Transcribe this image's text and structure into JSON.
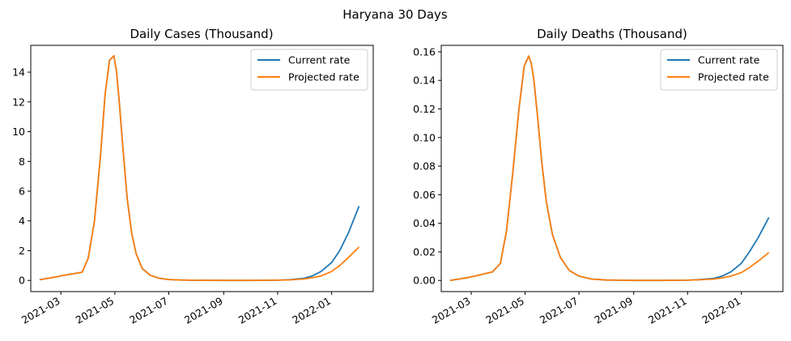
{
  "figure": {
    "title": "Haryana 30 Days"
  },
  "colors": {
    "current": "#1f77b4",
    "projected": "#ff7f0e"
  },
  "chart_data": [
    {
      "type": "line",
      "title": "Daily Cases (Thousand)",
      "xlabel": "",
      "ylabel": "",
      "x_tick_labels": [
        "2021-03",
        "2021-05",
        "2021-07",
        "2021-09",
        "2021-11",
        "2022-01"
      ],
      "x_tick_dates": [
        "2021-03-01",
        "2021-05-01",
        "2021-07-01",
        "2021-09-01",
        "2021-11-01",
        "2022-01-01"
      ],
      "xlim": [
        "2021-01-26",
        "2022-02-17"
      ],
      "ylim": [
        -0.75,
        15.8
      ],
      "y_ticks": [
        0,
        2,
        4,
        6,
        8,
        10,
        12,
        14
      ],
      "y_tick_labels": [
        "0",
        "2",
        "4",
        "6",
        "8",
        "10",
        "12",
        "14"
      ],
      "legend": {
        "position": "top-right",
        "entries": [
          "Current rate",
          "Projected rate"
        ]
      },
      "grid": false,
      "series": [
        {
          "name": "Current rate",
          "color_key": "current",
          "x": [
            "2021-02-05",
            "2021-02-15",
            "2021-02-25",
            "2021-03-05",
            "2021-03-15",
            "2021-03-25",
            "2021-04-01",
            "2021-04-08",
            "2021-04-15",
            "2021-04-20",
            "2021-04-25",
            "2021-04-30",
            "2021-05-03",
            "2021-05-06",
            "2021-05-10",
            "2021-05-15",
            "2021-05-20",
            "2021-05-25",
            "2021-06-01",
            "2021-06-10",
            "2021-06-20",
            "2021-07-01",
            "2021-07-15",
            "2021-08-01",
            "2021-09-01",
            "2021-10-01",
            "2021-11-01",
            "2021-11-15",
            "2021-12-01",
            "2021-12-10",
            "2021-12-20",
            "2022-01-01",
            "2022-01-10",
            "2022-01-20",
            "2022-02-01"
          ],
          "y": [
            0.05,
            0.15,
            0.25,
            0.35,
            0.45,
            0.55,
            1.5,
            4.0,
            8.5,
            12.5,
            14.8,
            15.1,
            14.0,
            12.0,
            9.0,
            5.5,
            3.2,
            1.8,
            0.8,
            0.35,
            0.15,
            0.06,
            0.03,
            0.01,
            0.0,
            0.0,
            0.02,
            0.05,
            0.15,
            0.3,
            0.6,
            1.2,
            2.0,
            3.2,
            5.0
          ]
        },
        {
          "name": "Projected rate",
          "color_key": "projected",
          "x": [
            "2021-02-05",
            "2021-02-15",
            "2021-02-25",
            "2021-03-05",
            "2021-03-15",
            "2021-03-25",
            "2021-04-01",
            "2021-04-08",
            "2021-04-15",
            "2021-04-20",
            "2021-04-25",
            "2021-04-30",
            "2021-05-03",
            "2021-05-06",
            "2021-05-10",
            "2021-05-15",
            "2021-05-20",
            "2021-05-25",
            "2021-06-01",
            "2021-06-10",
            "2021-06-20",
            "2021-07-01",
            "2021-07-15",
            "2021-08-01",
            "2021-09-01",
            "2021-10-01",
            "2021-11-01",
            "2021-11-15",
            "2021-12-01",
            "2021-12-10",
            "2021-12-20",
            "2022-01-01",
            "2022-01-10",
            "2022-01-20",
            "2022-02-01"
          ],
          "y": [
            0.05,
            0.15,
            0.25,
            0.35,
            0.45,
            0.55,
            1.5,
            4.0,
            8.5,
            12.5,
            14.8,
            15.1,
            14.0,
            12.0,
            9.0,
            5.5,
            3.2,
            1.8,
            0.8,
            0.35,
            0.15,
            0.06,
            0.03,
            0.01,
            0.0,
            0.0,
            0.02,
            0.04,
            0.1,
            0.18,
            0.3,
            0.6,
            1.0,
            1.55,
            2.25
          ]
        }
      ]
    },
    {
      "type": "line",
      "title": "Daily Deaths (Thousand)",
      "xlabel": "",
      "ylabel": "",
      "x_tick_labels": [
        "2021-03",
        "2021-05",
        "2021-07",
        "2021-09",
        "2021-11",
        "2022-01"
      ],
      "x_tick_dates": [
        "2021-03-01",
        "2021-05-01",
        "2021-07-01",
        "2021-09-01",
        "2021-11-01",
        "2022-01-01"
      ],
      "xlim": [
        "2021-01-26",
        "2022-02-17"
      ],
      "ylim": [
        -0.0078,
        0.1645
      ],
      "y_ticks": [
        0.0,
        0.02,
        0.04,
        0.06,
        0.08,
        0.1,
        0.12,
        0.14,
        0.16
      ],
      "y_tick_labels": [
        "0.00",
        "0.02",
        "0.04",
        "0.06",
        "0.08",
        "0.10",
        "0.12",
        "0.14",
        "0.16"
      ],
      "legend": {
        "position": "top-right",
        "entries": [
          "Current rate",
          "Projected rate"
        ]
      },
      "grid": false,
      "series": [
        {
          "name": "Current rate",
          "color_key": "current",
          "x": [
            "2021-02-05",
            "2021-02-15",
            "2021-02-25",
            "2021-03-05",
            "2021-03-15",
            "2021-03-25",
            "2021-04-03",
            "2021-04-10",
            "2021-04-17",
            "2021-04-24",
            "2021-04-30",
            "2021-05-05",
            "2021-05-08",
            "2021-05-11",
            "2021-05-15",
            "2021-05-20",
            "2021-05-25",
            "2021-06-01",
            "2021-06-10",
            "2021-06-20",
            "2021-07-01",
            "2021-07-15",
            "2021-08-01",
            "2021-09-01",
            "2021-10-01",
            "2021-11-01",
            "2021-11-15",
            "2021-12-01",
            "2021-12-10",
            "2021-12-20",
            "2022-01-01",
            "2022-01-10",
            "2022-01-20",
            "2022-02-01"
          ],
          "y": [
            0.0,
            0.001,
            0.002,
            0.003,
            0.0045,
            0.006,
            0.012,
            0.035,
            0.075,
            0.12,
            0.15,
            0.157,
            0.152,
            0.14,
            0.115,
            0.082,
            0.055,
            0.032,
            0.016,
            0.007,
            0.003,
            0.001,
            0.0003,
            0.0,
            0.0,
            0.0002,
            0.0006,
            0.0015,
            0.003,
            0.006,
            0.012,
            0.02,
            0.03,
            0.044
          ]
        },
        {
          "name": "Projected rate",
          "color_key": "projected",
          "x": [
            "2021-02-05",
            "2021-02-15",
            "2021-02-25",
            "2021-03-05",
            "2021-03-15",
            "2021-03-25",
            "2021-04-03",
            "2021-04-10",
            "2021-04-17",
            "2021-04-24",
            "2021-04-30",
            "2021-05-05",
            "2021-05-08",
            "2021-05-11",
            "2021-05-15",
            "2021-05-20",
            "2021-05-25",
            "2021-06-01",
            "2021-06-10",
            "2021-06-20",
            "2021-07-01",
            "2021-07-15",
            "2021-08-01",
            "2021-09-01",
            "2021-10-01",
            "2021-11-01",
            "2021-11-15",
            "2021-12-01",
            "2021-12-10",
            "2021-12-20",
            "2022-01-01",
            "2022-01-10",
            "2022-01-20",
            "2022-02-01"
          ],
          "y": [
            0.0,
            0.001,
            0.002,
            0.003,
            0.0045,
            0.006,
            0.012,
            0.035,
            0.075,
            0.12,
            0.15,
            0.157,
            0.152,
            0.14,
            0.115,
            0.082,
            0.055,
            0.032,
            0.016,
            0.007,
            0.003,
            0.001,
            0.0003,
            0.0,
            0.0,
            0.0002,
            0.0005,
            0.001,
            0.0018,
            0.003,
            0.0055,
            0.009,
            0.0135,
            0.0195
          ]
        }
      ]
    }
  ]
}
